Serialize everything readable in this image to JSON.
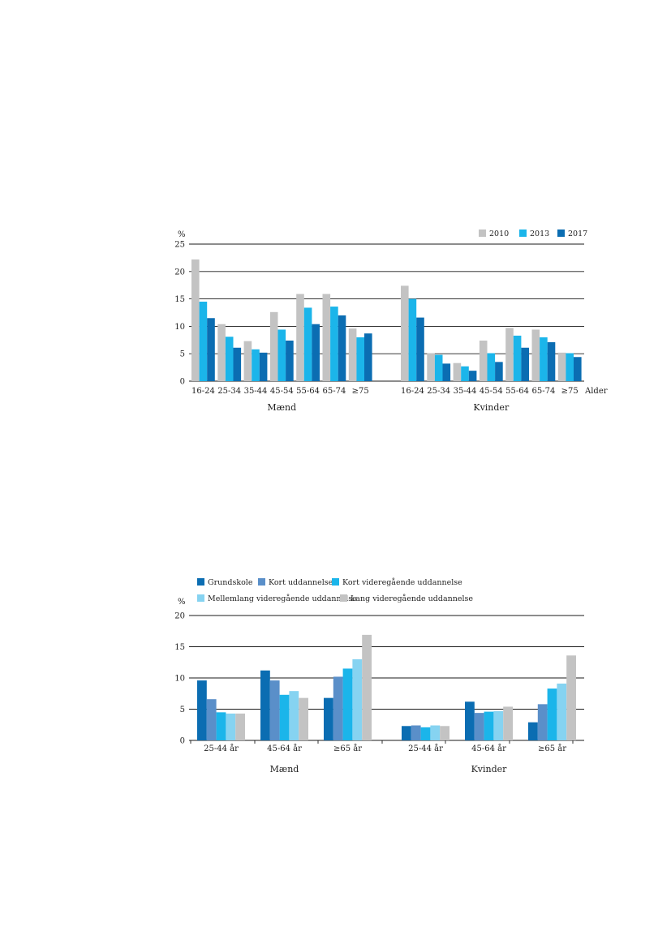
{
  "chart_data": [
    {
      "type": "bar",
      "y_unit": "%",
      "x_axis_label": "Alder",
      "ylim": [
        0,
        25
      ],
      "yticks": [
        0,
        5,
        10,
        15,
        20,
        25
      ],
      "grid": true,
      "legend_position": "top-right",
      "groups": [
        {
          "label": "Mænd",
          "categories": [
            "16-24",
            "25-34",
            "35-44",
            "45-54",
            "55-64",
            "65-74",
            "≥75"
          ],
          "series": [
            {
              "name": "2010",
              "values": [
                22.2,
                10.4,
                7.3,
                12.6,
                15.9,
                15.9,
                9.6
              ]
            },
            {
              "name": "2013",
              "values": [
                14.5,
                8.1,
                5.8,
                9.4,
                13.4,
                13.6,
                8.0
              ]
            },
            {
              "name": "2017",
              "values": [
                11.5,
                6.1,
                5.2,
                7.4,
                10.4,
                12.0,
                8.7
              ]
            }
          ]
        },
        {
          "label": "Kvinder",
          "categories": [
            "16-24",
            "25-34",
            "35-44",
            "45-54",
            "55-64",
            "65-74",
            "≥75"
          ],
          "series": [
            {
              "name": "2010",
              "values": [
                17.4,
                5.1,
                3.3,
                7.4,
                9.7,
                9.4,
                5.2
              ]
            },
            {
              "name": "2013",
              "values": [
                15.0,
                4.8,
                2.7,
                5.1,
                8.3,
                8.0,
                5.1
              ]
            },
            {
              "name": "2017",
              "values": [
                11.6,
                3.2,
                1.9,
                3.5,
                6.1,
                7.1,
                4.4
              ]
            }
          ]
        }
      ],
      "colors": [
        "#c3c3c3",
        "#1bb5ea",
        "#0b6db2"
      ]
    },
    {
      "type": "bar",
      "y_unit": "%",
      "ylim": [
        0,
        20
      ],
      "yticks": [
        0,
        5,
        10,
        15,
        20
      ],
      "grid": true,
      "legend_position": "top-left",
      "groups": [
        {
          "label": "Mænd",
          "categories": [
            "25-44 år",
            "45-64 år",
            "≥65 år"
          ],
          "series": [
            {
              "name": "Grundskole",
              "values": [
                9.6,
                11.2,
                6.8
              ]
            },
            {
              "name": "Kort uddannelse",
              "values": [
                6.6,
                9.6,
                10.2
              ]
            },
            {
              "name": "Kort videregående uddannelse",
              "values": [
                4.5,
                7.3,
                11.5
              ]
            },
            {
              "name": "Mellemlang videregående uddannelse",
              "values": [
                4.3,
                7.9,
                13.0
              ]
            },
            {
              "name": "Lang videregående uddannelse",
              "values": [
                4.3,
                6.8,
                16.9
              ]
            }
          ]
        },
        {
          "label": "Kvinder",
          "categories": [
            "25-44 år",
            "45-64 år",
            "≥65 år"
          ],
          "series": [
            {
              "name": "Grundskole",
              "values": [
                2.3,
                6.2,
                2.9
              ]
            },
            {
              "name": "Kort uddannelse",
              "values": [
                2.4,
                4.4,
                5.8
              ]
            },
            {
              "name": "Kort videregående uddannelse",
              "values": [
                2.1,
                4.6,
                8.3
              ]
            },
            {
              "name": "Mellemlang videregående uddannelse",
              "values": [
                2.4,
                4.7,
                9.1
              ]
            },
            {
              "name": "Lang videregående uddannelse",
              "values": [
                2.3,
                5.4,
                13.6
              ]
            }
          ]
        }
      ],
      "colors": [
        "#0b6db2",
        "#5a8fc9",
        "#1bb5ea",
        "#86d3f1",
        "#c3c3c3"
      ]
    }
  ]
}
